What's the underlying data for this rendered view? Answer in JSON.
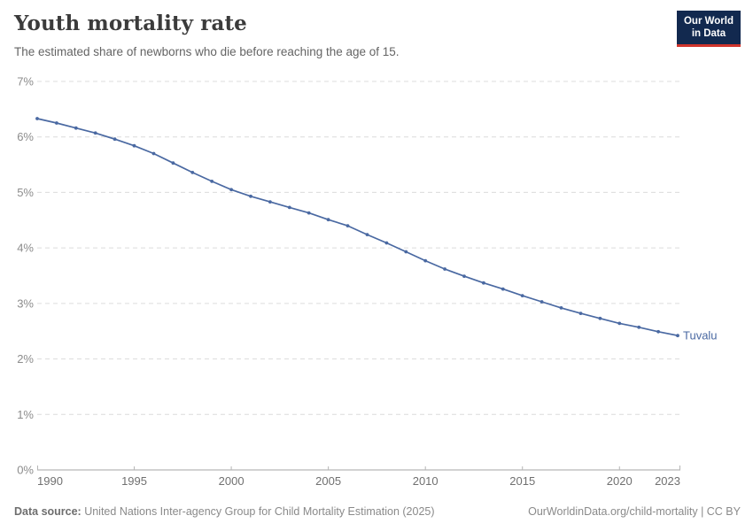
{
  "header": {
    "title": "Youth mortality rate",
    "subtitle": "The estimated share of newborns who die before reaching the age of 15.",
    "logo": {
      "line1": "Our World",
      "line2": "in Data"
    }
  },
  "chart_data": {
    "type": "line",
    "title": "Youth mortality rate",
    "subtitle": "The estimated share of newborns who die before reaching the age of 15.",
    "xlabel": "",
    "ylabel": "",
    "ylim": [
      0,
      7
    ],
    "xlim": [
      1990,
      2023
    ],
    "y_ticks": [
      0,
      1,
      2,
      3,
      4,
      5,
      6,
      7
    ],
    "y_tick_suffix": "%",
    "x_ticks": [
      1990,
      1995,
      2000,
      2005,
      2010,
      2015,
      2020,
      2023
    ],
    "grid": "horizontal-dashed",
    "legend_position": "end-of-line-label",
    "series": [
      {
        "name": "Tuvalu",
        "color": "#4A69A2",
        "x": [
          1990,
          1991,
          1992,
          1993,
          1994,
          1995,
          1996,
          1997,
          1998,
          1999,
          2000,
          2001,
          2002,
          2003,
          2004,
          2005,
          2006,
          2007,
          2008,
          2009,
          2010,
          2011,
          2012,
          2013,
          2014,
          2015,
          2016,
          2017,
          2018,
          2019,
          2020,
          2021,
          2022,
          2023
        ],
        "values": [
          6.33,
          6.25,
          6.16,
          6.07,
          5.96,
          5.84,
          5.7,
          5.53,
          5.36,
          5.2,
          5.05,
          4.93,
          4.83,
          4.73,
          4.63,
          4.51,
          4.4,
          4.24,
          4.09,
          3.93,
          3.77,
          3.62,
          3.49,
          3.37,
          3.26,
          3.14,
          3.03,
          2.92,
          2.82,
          2.73,
          2.64,
          2.57,
          2.49,
          2.42
        ]
      }
    ]
  },
  "footer": {
    "data_source_label": "Data source:",
    "data_source_text": " United Nations Inter-agency Group for Child Mortality Estimation (2025)",
    "link_text": "OurWorldinData.org/child-mortality | CC BY"
  },
  "colors": {
    "line": "#4A69A2",
    "grid": "#dcdcdc",
    "axis": "#a5a5a5",
    "tick": "#b5b5b5",
    "y_label": "#8c8c8c",
    "x_label": "#707070"
  }
}
